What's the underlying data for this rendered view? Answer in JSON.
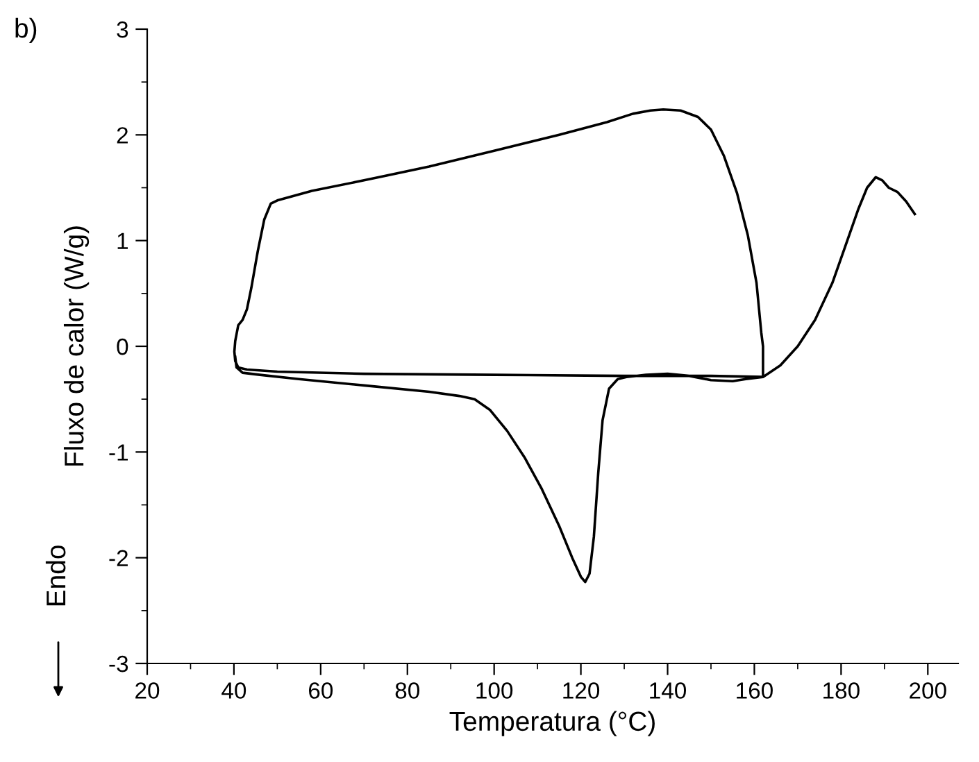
{
  "chart_data": {
    "type": "line",
    "xlabel": "Temperatura (°C)",
    "ylabel": "Fluxo de calor (W/g)",
    "annotations": [
      "b)",
      "Endo"
    ],
    "series": [
      {
        "color": "#000000",
        "x": [
          40.3,
          40.6,
          42,
          46,
          55,
          70,
          85,
          92,
          95.5,
          99,
          103,
          107,
          111,
          115,
          118,
          120,
          121,
          122,
          123,
          124,
          125,
          126.5,
          128.5,
          130.5,
          135,
          140,
          145,
          150,
          155,
          158,
          162,
          162,
          161.6,
          160.5,
          158.5,
          156,
          153,
          150,
          147,
          143,
          139,
          136,
          132,
          126,
          115,
          100,
          85,
          70,
          58,
          50,
          48.5,
          47,
          45.5,
          44,
          43,
          42,
          41,
          40.3,
          40.1,
          40.3,
          41,
          43,
          50,
          70,
          100,
          130,
          150,
          162,
          166,
          170,
          174,
          178,
          181,
          184,
          186,
          188,
          189.5,
          191,
          193,
          195,
          197
        ],
        "values": [
          -0.1,
          -0.2,
          -0.25,
          -0.27,
          -0.31,
          -0.37,
          -0.43,
          -0.47,
          -0.5,
          -0.6,
          -0.8,
          -1.05,
          -1.35,
          -1.7,
          -2.0,
          -2.18,
          -2.23,
          -2.15,
          -1.8,
          -1.2,
          -0.7,
          -0.4,
          -0.31,
          -0.29,
          -0.27,
          -0.26,
          -0.28,
          -0.32,
          -0.33,
          -0.31,
          -0.29,
          0.0,
          0.13,
          0.6,
          1.05,
          1.45,
          1.8,
          2.05,
          2.17,
          2.23,
          2.24,
          2.23,
          2.2,
          2.12,
          2.0,
          1.85,
          1.7,
          1.57,
          1.47,
          1.38,
          1.35,
          1.2,
          0.9,
          0.55,
          0.35,
          0.25,
          0.2,
          0.05,
          -0.05,
          -0.14,
          -0.2,
          -0.22,
          -0.24,
          -0.26,
          -0.27,
          -0.28,
          -0.28,
          -0.29,
          -0.18,
          0.0,
          0.25,
          0.6,
          0.95,
          1.3,
          1.5,
          1.6,
          1.57,
          1.5,
          1.46,
          1.37,
          1.25
        ]
      }
    ],
    "xlim": [
      20,
      207
    ],
    "ylim": [
      -3,
      3
    ],
    "xticks": [
      20,
      40,
      60,
      80,
      100,
      120,
      140,
      160,
      180,
      200
    ],
    "yticks": [
      -3,
      -2,
      -1,
      0,
      1,
      2,
      3
    ],
    "grid": false,
    "legend": false,
    "marker": "none",
    "line_style": "solid"
  }
}
